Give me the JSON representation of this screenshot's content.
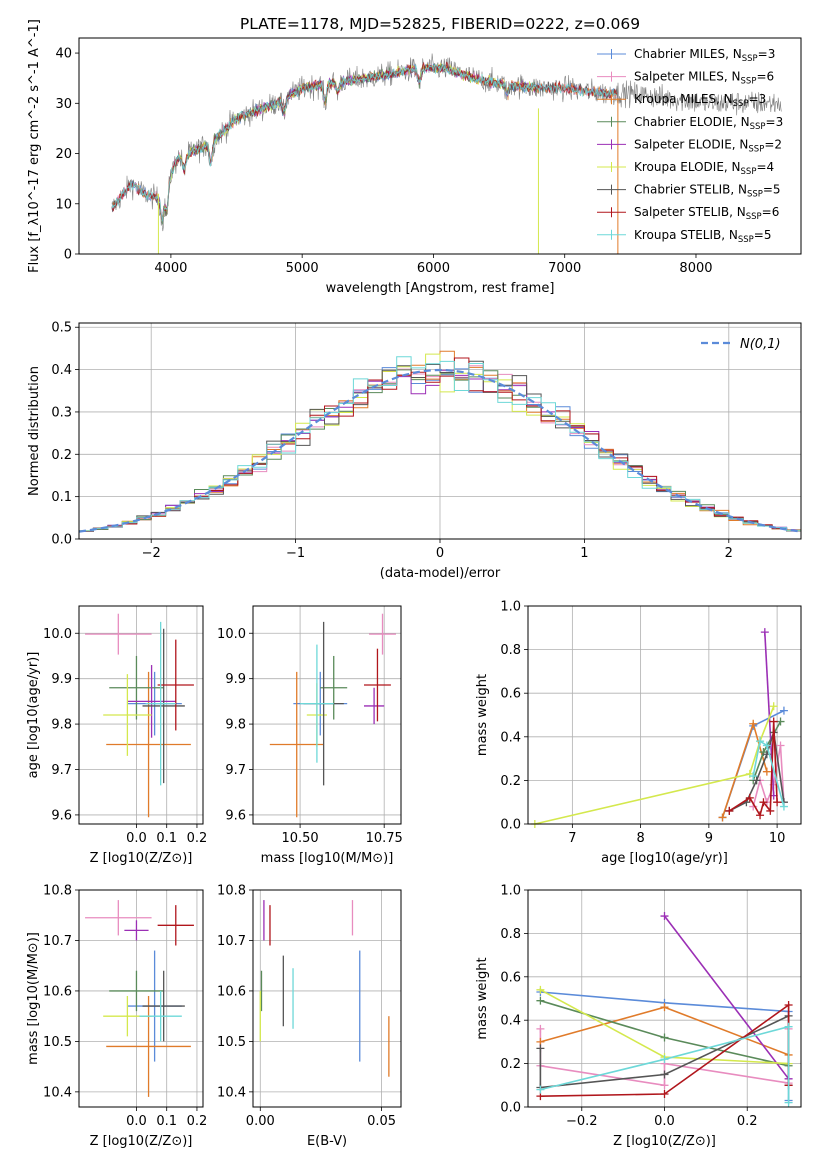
{
  "title": "PLATE=1178, MJD=52825, FIBERID=0222, z=0.069",
  "colors": {
    "Chabrier MILES": "#5b8bd9",
    "Salpeter MILES": "#e88cbf",
    "Kroupa MILES": "#e07b2a",
    "Chabrier ELODIE": "#5a8a5a",
    "Salpeter ELODIE": "#9b2fb5",
    "Kroupa ELODIE": "#d4e84d",
    "Chabrier STELIB": "#555555",
    "Salpeter STELIB": "#b0161c",
    "Kroupa STELIB": "#6dd8d8",
    "normal": "#5b8bd9",
    "grid": "#b0b0b0"
  },
  "chart_data": [
    {
      "id": "spectrum",
      "type": "line",
      "xlabel": "wavelength [Angstrom, rest frame]",
      "ylabel": "Flux [f_λ10^-17 erg cm^-2 s^-1 A^-1]",
      "xlim": [
        3300,
        8800
      ],
      "ylim": [
        0,
        43
      ],
      "xticks": [
        4000,
        5000,
        6000,
        7000,
        8000
      ],
      "yticks": [
        0,
        10,
        20,
        30,
        40
      ],
      "grid": false,
      "legend_position": "top-right",
      "observed_color": "#7f7f7f",
      "continuum_anchors": [
        [
          3550,
          9
        ],
        [
          3700,
          14
        ],
        [
          3800,
          12
        ],
        [
          3900,
          11
        ],
        [
          3950,
          13
        ],
        [
          4050,
          19
        ],
        [
          4300,
          22
        ],
        [
          4500,
          27
        ],
        [
          4800,
          30
        ],
        [
          5000,
          33
        ],
        [
          5200,
          34
        ],
        [
          5500,
          35
        ],
        [
          5700,
          36
        ],
        [
          5900,
          37
        ],
        [
          6100,
          37
        ],
        [
          6300,
          35
        ],
        [
          6500,
          34
        ],
        [
          6800,
          33
        ],
        [
          7000,
          33
        ],
        [
          7300,
          32
        ],
        [
          7500,
          32
        ],
        [
          7800,
          31
        ],
        [
          8100,
          30
        ],
        [
          8300,
          30
        ],
        [
          8650,
          30
        ]
      ],
      "models": [
        {
          "name": "Chabrier MILES",
          "nssp": "3",
          "xrange": [
            3550,
            7400
          ]
        },
        {
          "name": "Salpeter MILES",
          "nssp": "6",
          "xrange": [
            3550,
            7400
          ]
        },
        {
          "name": "Kroupa MILES",
          "nssp": "3",
          "xrange": [
            3550,
            7400
          ]
        },
        {
          "name": "Chabrier ELODIE",
          "nssp": "3",
          "xrange": [
            3900,
            6800
          ]
        },
        {
          "name": "Salpeter ELODIE",
          "nssp": "2",
          "xrange": [
            3900,
            6800
          ]
        },
        {
          "name": "Kroupa ELODIE",
          "nssp": "4",
          "xrange": [
            3900,
            6800
          ]
        },
        {
          "name": "Chabrier STELIB",
          "nssp": "5",
          "xrange": [
            3550,
            7400
          ]
        },
        {
          "name": "Salpeter STELIB",
          "nssp": "6",
          "xrange": [
            3550,
            7400
          ]
        },
        {
          "name": "Kroupa STELIB",
          "nssp": "5",
          "xrange": [
            3550,
            7400
          ]
        }
      ]
    },
    {
      "id": "residuals",
      "type": "histogram",
      "xlabel": "(data-model)/error",
      "ylabel": "Normed distribution",
      "xlim": [
        -2.5,
        2.5
      ],
      "ylim": [
        0,
        0.51
      ],
      "xticks": [
        -2,
        -1,
        0,
        1,
        2
      ],
      "yticks": [
        0.0,
        0.1,
        0.2,
        0.3,
        0.4,
        0.5
      ],
      "grid": true,
      "legend": {
        "label": "N(0,1)",
        "position": "top-right"
      },
      "bin_width": 0.1
    },
    {
      "id": "z-age",
      "type": "errorbar",
      "xlabel": "Z [log10(Z/Z⊙)]",
      "ylabel": "age [log10(age/yr)]",
      "xlim": [
        -0.19,
        0.22
      ],
      "ylim": [
        9.58,
        10.06
      ],
      "xticks": [
        0.0,
        0.1,
        0.2
      ],
      "yticks": [
        9.6,
        9.7,
        9.8,
        9.9,
        10.0
      ],
      "grid": true,
      "points": [
        {
          "model": "Chabrier MILES",
          "x": 0.06,
          "xerr": 0.09,
          "y": 9.845,
          "yerr": 0.07
        },
        {
          "model": "Salpeter MILES",
          "x": -0.06,
          "xerr": 0.11,
          "y": 9.998,
          "yerr": 0.045
        },
        {
          "model": "Kroupa MILES",
          "x": 0.04,
          "xerr": 0.14,
          "y": 9.755,
          "yerr": 0.16
        },
        {
          "model": "Chabrier ELODIE",
          "x": 0.0,
          "xerr": 0.09,
          "y": 9.88,
          "yerr": 0.07
        },
        {
          "model": "Salpeter ELODIE",
          "x": 0.05,
          "xerr": 0.08,
          "y": 9.85,
          "yerr": 0.08
        },
        {
          "model": "Kroupa ELODIE",
          "x": -0.03,
          "xerr": 0.08,
          "y": 9.82,
          "yerr": 0.09
        },
        {
          "model": "Chabrier STELIB",
          "x": 0.09,
          "xerr": 0.07,
          "y": 9.84,
          "yerr": 0.17
        },
        {
          "model": "Salpeter STELIB",
          "x": 0.13,
          "xerr": 0.06,
          "y": 9.886,
          "yerr": 0.1
        },
        {
          "model": "Kroupa STELIB",
          "x": 0.08,
          "xerr": 0.05,
          "y": 9.845,
          "yerr": 0.18
        }
      ]
    },
    {
      "id": "mass-age",
      "type": "errorbar",
      "xlabel": "mass [log10(M/M⊙)]",
      "ylabel": "",
      "xlim": [
        10.36,
        10.8
      ],
      "ylim": [
        9.58,
        10.06
      ],
      "xticks": [
        10.5,
        10.75
      ],
      "yticks": [
        9.6,
        9.7,
        9.8,
        9.9,
        10.0
      ],
      "grid": true,
      "points": [
        {
          "model": "Chabrier MILES",
          "x": 10.56,
          "xerr": 0.08,
          "y": 9.845,
          "yerr": 0.07
        },
        {
          "model": "Salpeter MILES",
          "x": 10.745,
          "xerr": 0.04,
          "y": 9.998,
          "yerr": 0.045
        },
        {
          "model": "Kroupa MILES",
          "x": 10.49,
          "xerr": 0.08,
          "y": 9.755,
          "yerr": 0.16
        },
        {
          "model": "Chabrier ELODIE",
          "x": 10.6,
          "xerr": 0.04,
          "y": 9.88,
          "yerr": 0.07
        },
        {
          "model": "Salpeter ELODIE",
          "x": 10.72,
          "xerr": 0.03,
          "y": 9.84,
          "yerr": 0.04
        },
        {
          "model": "Kroupa ELODIE",
          "x": 10.55,
          "xerr": 0.03,
          "y": 9.82,
          "yerr": 0.07
        },
        {
          "model": "Chabrier STELIB",
          "x": 10.57,
          "xerr": 0.06,
          "y": 9.845,
          "yerr": 0.18
        },
        {
          "model": "Salpeter STELIB",
          "x": 10.73,
          "xerr": 0.04,
          "y": 9.886,
          "yerr": 0.08
        },
        {
          "model": "Kroupa STELIB",
          "x": 10.55,
          "xerr": 0.05,
          "y": 9.845,
          "yerr": 0.13
        }
      ]
    },
    {
      "id": "age-weight",
      "type": "line",
      "xlabel": "age [log10(age/yr)]",
      "ylabel": "mass weight",
      "xlim": [
        6.35,
        10.35
      ],
      "ylim": [
        0,
        1
      ],
      "xticks": [
        7,
        8,
        9,
        10
      ],
      "yticks": [
        0.0,
        0.2,
        0.4,
        0.6,
        0.8,
        1.0
      ],
      "grid": true,
      "series": [
        {
          "model": "Chabrier MILES",
          "points": [
            [
              9.2,
              0.03
            ],
            [
              9.65,
              0.45
            ],
            [
              10.1,
              0.52
            ]
          ]
        },
        {
          "model": "Salpeter MILES",
          "points": [
            [
              9.65,
              0.08
            ],
            [
              9.75,
              0.2
            ],
            [
              9.85,
              0.1
            ],
            [
              9.95,
              0.18
            ],
            [
              10.05,
              0.36
            ],
            [
              10.1,
              0.1
            ]
          ]
        },
        {
          "model": "Kroupa MILES",
          "points": [
            [
              9.2,
              0.03
            ],
            [
              9.65,
              0.46
            ],
            [
              9.85,
              0.24
            ]
          ]
        },
        {
          "model": "Chabrier ELODIE",
          "points": [
            [
              9.65,
              0.2
            ],
            [
              9.8,
              0.33
            ],
            [
              10.05,
              0.47
            ]
          ]
        },
        {
          "model": "Salpeter ELODIE",
          "points": [
            [
              9.82,
              0.88
            ],
            [
              9.95,
              0.13
            ]
          ]
        },
        {
          "model": "Kroupa ELODIE",
          "points": [
            [
              6.45,
              0.0
            ],
            [
              9.6,
              0.23
            ],
            [
              9.75,
              0.38
            ],
            [
              9.95,
              0.54
            ]
          ]
        },
        {
          "model": "Chabrier STELIB",
          "points": [
            [
              9.3,
              0.06
            ],
            [
              9.55,
              0.1
            ],
            [
              9.7,
              0.2
            ],
            [
              9.85,
              0.32
            ],
            [
              9.95,
              0.42
            ],
            [
              10.1,
              0.1
            ]
          ]
        },
        {
          "model": "Salpeter STELIB",
          "points": [
            [
              9.3,
              0.06
            ],
            [
              9.6,
              0.12
            ],
            [
              9.75,
              0.04
            ],
            [
              9.8,
              0.1
            ],
            [
              9.9,
              0.06
            ],
            [
              9.95,
              0.47
            ],
            [
              10.0,
              0.1
            ]
          ]
        },
        {
          "model": "Kroupa STELIB",
          "points": [
            [
              9.65,
              0.22
            ],
            [
              9.75,
              0.38
            ],
            [
              9.85,
              0.36
            ],
            [
              10.1,
              0.08
            ]
          ]
        }
      ]
    },
    {
      "id": "z-mass",
      "type": "errorbar",
      "xlabel": "Z [log10(Z/Z⊙)]",
      "ylabel": "mass [log10(M/M⊙)]",
      "xlim": [
        -0.19,
        0.22
      ],
      "ylim": [
        10.37,
        10.8
      ],
      "xticks": [
        0.0,
        0.1,
        0.2
      ],
      "yticks": [
        10.4,
        10.5,
        10.6,
        10.7,
        10.8
      ],
      "grid": true,
      "points": [
        {
          "model": "Chabrier MILES",
          "x": 0.06,
          "xerr": 0.09,
          "y": 10.57,
          "yerr": 0.11
        },
        {
          "model": "Salpeter MILES",
          "x": -0.06,
          "xerr": 0.11,
          "y": 10.745,
          "yerr": 0.035
        },
        {
          "model": "Kroupa MILES",
          "x": 0.04,
          "xerr": 0.14,
          "y": 10.49,
          "yerr": 0.1
        },
        {
          "model": "Chabrier ELODIE",
          "x": 0.0,
          "xerr": 0.09,
          "y": 10.6,
          "yerr": 0.04
        },
        {
          "model": "Salpeter ELODIE",
          "x": 0.0,
          "xerr": 0.04,
          "y": 10.72,
          "yerr": 0.02
        },
        {
          "model": "Kroupa ELODIE",
          "x": -0.03,
          "xerr": 0.08,
          "y": 10.55,
          "yerr": 0.04
        },
        {
          "model": "Chabrier STELIB",
          "x": 0.09,
          "xerr": 0.07,
          "y": 10.57,
          "yerr": 0.07
        },
        {
          "model": "Salpeter STELIB",
          "x": 0.13,
          "xerr": 0.06,
          "y": 10.73,
          "yerr": 0.04
        },
        {
          "model": "Kroupa STELIB",
          "x": 0.08,
          "xerr": 0.07,
          "y": 10.55,
          "yerr": 0.05
        }
      ]
    },
    {
      "id": "ebv-mass",
      "type": "errorbar",
      "xlabel": "E(B-V)",
      "ylabel": "",
      "xlim": [
        -0.003,
        0.058
      ],
      "ylim": [
        10.37,
        10.8
      ],
      "xticks": [
        0.0,
        0.05
      ],
      "yticks": [
        10.4,
        10.5,
        10.6,
        10.7,
        10.8
      ],
      "grid": true,
      "points": [
        {
          "model": "Chabrier MILES",
          "x": 0.041,
          "y": 10.57,
          "yerr": 0.11
        },
        {
          "model": "Salpeter MILES",
          "x": 0.038,
          "y": 10.745,
          "yerr": 0.035
        },
        {
          "model": "Kroupa MILES",
          "x": 0.053,
          "y": 10.49,
          "yerr": 0.06
        },
        {
          "model": "Chabrier ELODIE",
          "x": 0.0005,
          "y": 10.6,
          "yerr": 0.04
        },
        {
          "model": "Salpeter ELODIE",
          "x": 0.0015,
          "y": 10.74,
          "yerr": 0.04
        },
        {
          "model": "Kroupa ELODIE",
          "x": 0.0,
          "y": 10.55,
          "yerr": 0.05
        },
        {
          "model": "Chabrier STELIB",
          "x": 0.0095,
          "y": 10.6,
          "yerr": 0.07
        },
        {
          "model": "Salpeter STELIB",
          "x": 0.004,
          "y": 10.73,
          "yerr": 0.04
        },
        {
          "model": "Kroupa STELIB",
          "x": 0.0135,
          "y": 10.585,
          "yerr": 0.06
        }
      ]
    },
    {
      "id": "z-weight",
      "type": "line",
      "xlabel": "Z [log10(Z/Z⊙)]",
      "ylabel": "mass weight",
      "xlim": [
        -0.33,
        0.33
      ],
      "ylim": [
        0,
        1
      ],
      "xticks": [
        -0.2,
        0.0,
        0.2
      ],
      "yticks": [
        0.0,
        0.2,
        0.4,
        0.6,
        0.8,
        1.0
      ],
      "grid": true,
      "series": [
        {
          "model": "Chabrier MILES",
          "points": [
            [
              -0.3,
              0.53
            ],
            [
              0.0,
              0.48
            ],
            [
              0.3,
              0.44
            ],
            [
              0.3,
              0.03
            ]
          ]
        },
        {
          "model": "Salpeter MILES",
          "points": [
            [
              -0.3,
              0.36
            ],
            [
              -0.3,
              0.19
            ],
            [
              0.0,
              0.1
            ],
            [
              0.0,
              0.2
            ],
            [
              0.3,
              0.11
            ],
            [
              0.3,
              0.36
            ]
          ]
        },
        {
          "model": "Kroupa MILES",
          "points": [
            [
              -0.3,
              0.3
            ],
            [
              0.0,
              0.46
            ],
            [
              0.3,
              0.24
            ]
          ]
        },
        {
          "model": "Chabrier ELODIE",
          "points": [
            [
              -0.3,
              0.49
            ],
            [
              0.0,
              0.32
            ],
            [
              0.3,
              0.19
            ]
          ]
        },
        {
          "model": "Salpeter ELODIE",
          "points": [
            [
              0.0,
              0.88
            ],
            [
              0.3,
              0.13
            ]
          ]
        },
        {
          "model": "Kroupa ELODIE",
          "points": [
            [
              -0.3,
              0.54
            ],
            [
              0.0,
              0.23
            ],
            [
              0.3,
              0.2
            ]
          ]
        },
        {
          "model": "Chabrier STELIB",
          "points": [
            [
              -0.3,
              0.27
            ],
            [
              -0.3,
              0.09
            ],
            [
              0.0,
              0.15
            ],
            [
              0.3,
              0.42
            ],
            [
              0.3,
              0.1
            ]
          ]
        },
        {
          "model": "Salpeter STELIB",
          "points": [
            [
              -0.3,
              0.05
            ],
            [
              0.0,
              0.06
            ],
            [
              0.3,
              0.47
            ],
            [
              0.3,
              0.1
            ]
          ]
        },
        {
          "model": "Kroupa STELIB",
          "points": [
            [
              -0.3,
              0.08
            ],
            [
              0.0,
              0.22
            ],
            [
              0.3,
              0.37
            ],
            [
              0.3,
              0.02
            ]
          ]
        }
      ]
    }
  ]
}
